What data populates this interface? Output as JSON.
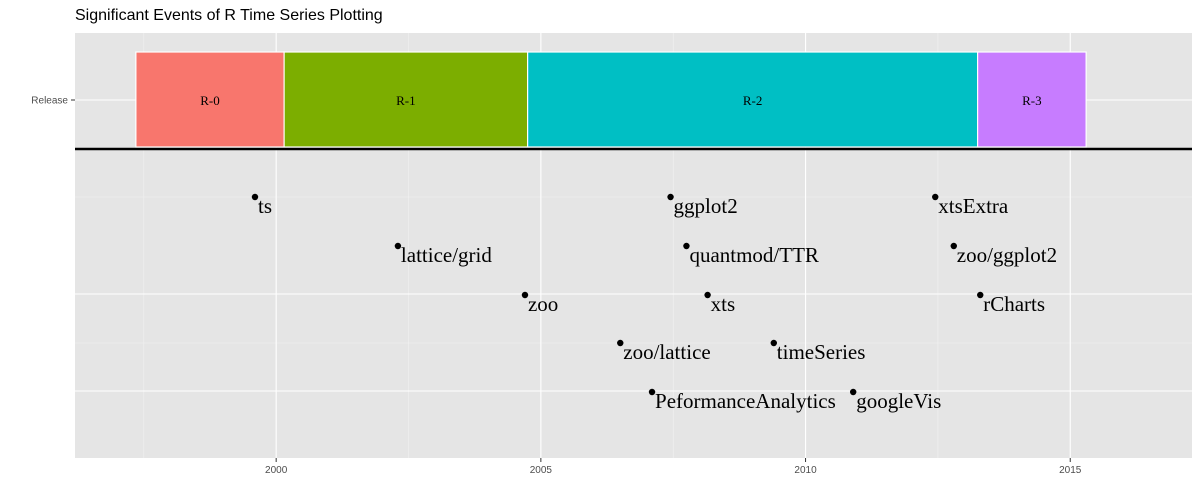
{
  "chart_data": {
    "type": "timeline",
    "title": "Significant Events of R Time Series Plotting",
    "xlabel": "",
    "ylabel": "",
    "xlim": [
      1996.2,
      2017.3
    ],
    "x_ticks": [
      2000,
      2005,
      2010,
      2015
    ],
    "y_category": "Release",
    "grid": true,
    "releases": [
      {
        "label": "R-0",
        "start": 1997.35,
        "end": 2000.15,
        "color": "#F8766D"
      },
      {
        "label": "R-1",
        "start": 2000.15,
        "end": 2004.75,
        "color": "#7CAE00"
      },
      {
        "label": "R-2",
        "start": 2004.75,
        "end": 2013.25,
        "color": "#00BFC4"
      },
      {
        "label": "R-3",
        "start": 2013.25,
        "end": 2015.3,
        "color": "#C77CFF"
      }
    ],
    "events": [
      {
        "label": "ts",
        "x": 1999.6,
        "level": 1
      },
      {
        "label": "lattice/grid",
        "x": 2002.3,
        "level": 2
      },
      {
        "label": "zoo",
        "x": 2004.7,
        "level": 3
      },
      {
        "label": "zoo/lattice",
        "x": 2006.5,
        "level": 4
      },
      {
        "label": "PeformanceAnalytics",
        "x": 2007.1,
        "level": 5
      },
      {
        "label": "ggplot2",
        "x": 2007.45,
        "level": 1
      },
      {
        "label": "quantmod/TTR",
        "x": 2007.75,
        "level": 2
      },
      {
        "label": "xts",
        "x": 2008.15,
        "level": 3
      },
      {
        "label": "timeSeries",
        "x": 2009.4,
        "level": 4
      },
      {
        "label": "googleVis",
        "x": 2010.9,
        "level": 5
      },
      {
        "label": "xtsExtra",
        "x": 2012.45,
        "level": 1
      },
      {
        "label": "zoo/ggplot2",
        "x": 2012.8,
        "level": 2
      },
      {
        "label": "rCharts",
        "x": 2013.3,
        "level": 3
      }
    ]
  }
}
